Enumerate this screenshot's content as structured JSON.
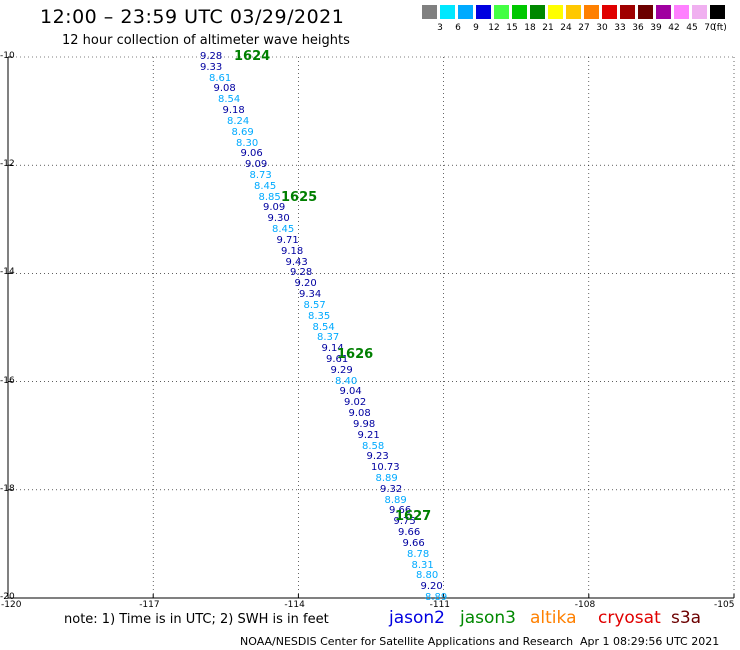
{
  "title": "12:00 – 23:59 UTC 03/29/2021",
  "subtitle": "12 hour collection of altimeter wave heights",
  "colorbar": {
    "colors": [
      "#808080",
      "#00e8ff",
      "#00aaff",
      "#0000e0",
      "#44ff44",
      "#00c800",
      "#008800",
      "#ffff00",
      "#ffc800",
      "#ff8000",
      "#e00000",
      "#a00000",
      "#6c0000",
      "#a000a0",
      "#ff80ff",
      "#f0b0f0",
      "#000000"
    ],
    "labels": [
      "3",
      "6",
      "9",
      "12",
      "15",
      "18",
      "21",
      "24",
      "27",
      "30",
      "33",
      "36",
      "39",
      "42",
      "45",
      "70",
      "(ft)"
    ]
  },
  "chart_data": {
    "type": "scatter",
    "x_axis": {
      "ticks": [
        "-120",
        "-117",
        "-114",
        "-111",
        "-108",
        "-105"
      ]
    },
    "y_axis": {
      "ticks": [
        "-10",
        "-12",
        "-14",
        "-16",
        "-18",
        "-20"
      ]
    },
    "passes": [
      {
        "label": "1624",
        "x": -114.6,
        "y": -10.0
      },
      {
        "label": "1625",
        "x": -113.9,
        "y": -12.6
      },
      {
        "label": "1626",
        "x": -112.8,
        "y": -15.5
      },
      {
        "label": "1627",
        "x": -111.6,
        "y": -18.5
      }
    ],
    "points": [
      {
        "v": "9.28",
        "x": -116.0,
        "y": -10.0,
        "c": "#0000a0"
      },
      {
        "v": "9.33",
        "x": -116.0,
        "y": -10.2,
        "c": "#0000a0"
      },
      {
        "v": "8.61",
        "x": -115.9,
        "y": -10.4,
        "c": "#00aaff"
      },
      {
        "v": "9.08",
        "x": -115.85,
        "y": -10.6,
        "c": "#0000a0"
      },
      {
        "v": "8.54",
        "x": -115.8,
        "y": -10.8,
        "c": "#00aaff"
      },
      {
        "v": "9.18",
        "x": -115.75,
        "y": -11.0,
        "c": "#0000a0"
      },
      {
        "v": "8.24",
        "x": -115.7,
        "y": -11.2,
        "c": "#00aaff"
      },
      {
        "v": "8.69",
        "x": -115.65,
        "y": -11.4,
        "c": "#00aaff"
      },
      {
        "v": "8.30",
        "x": -115.6,
        "y": -11.6,
        "c": "#00aaff"
      },
      {
        "v": "9.06",
        "x": -115.55,
        "y": -11.8,
        "c": "#0000a0"
      },
      {
        "v": "9.09",
        "x": -115.5,
        "y": -12.0,
        "c": "#0000a0"
      },
      {
        "v": "8.73",
        "x": -115.45,
        "y": -12.2,
        "c": "#00aaff"
      },
      {
        "v": "8.45",
        "x": -115.4,
        "y": -12.4,
        "c": "#00aaff"
      },
      {
        "v": "8.85",
        "x": -115.35,
        "y": -12.6,
        "c": "#00aaff"
      },
      {
        "v": "9.09",
        "x": -115.3,
        "y": -12.8,
        "c": "#0000a0"
      },
      {
        "v": "9.30",
        "x": -115.25,
        "y": -13.0,
        "c": "#0000a0"
      },
      {
        "v": "8.45",
        "x": -115.2,
        "y": -13.2,
        "c": "#00aaff"
      },
      {
        "v": "9.71",
        "x": -115.15,
        "y": -13.4,
        "c": "#0000a0"
      },
      {
        "v": "9.18",
        "x": -115.1,
        "y": -13.6,
        "c": "#0000a0"
      },
      {
        "v": "9.43",
        "x": -115.05,
        "y": -13.8,
        "c": "#0000a0"
      },
      {
        "v": "9.28",
        "x": -115.0,
        "y": -14.0,
        "c": "#0000a0"
      },
      {
        "v": "9.20",
        "x": -114.95,
        "y": -14.2,
        "c": "#0000a0"
      },
      {
        "v": "9.34",
        "x": -114.9,
        "y": -14.4,
        "c": "#0000a0"
      },
      {
        "v": "8.57",
        "x": -114.85,
        "y": -14.6,
        "c": "#00aaff"
      },
      {
        "v": "8.35",
        "x": -114.8,
        "y": -14.8,
        "c": "#00aaff"
      },
      {
        "v": "8.54",
        "x": -114.75,
        "y": -15.0,
        "c": "#00aaff"
      },
      {
        "v": "8.37",
        "x": -114.7,
        "y": -15.2,
        "c": "#00aaff"
      },
      {
        "v": "9.14",
        "x": -114.65,
        "y": -15.4,
        "c": "#0000a0"
      },
      {
        "v": "9.61",
        "x": -114.6,
        "y": -15.6,
        "c": "#0000a0"
      },
      {
        "v": "9.29",
        "x": -114.55,
        "y": -15.8,
        "c": "#0000a0"
      },
      {
        "v": "8.40",
        "x": -114.5,
        "y": -16.0,
        "c": "#00aaff"
      },
      {
        "v": "9.04",
        "x": -114.45,
        "y": -16.2,
        "c": "#0000a0"
      },
      {
        "v": "9.02",
        "x": -114.4,
        "y": -16.4,
        "c": "#0000a0"
      },
      {
        "v": "9.08",
        "x": -114.35,
        "y": -16.6,
        "c": "#0000a0"
      },
      {
        "v": "9.98",
        "x": -114.3,
        "y": -16.8,
        "c": "#0000a0"
      },
      {
        "v": "9.21",
        "x": -114.25,
        "y": -17.0,
        "c": "#0000a0"
      },
      {
        "v": "8.58",
        "x": -114.2,
        "y": -17.2,
        "c": "#00aaff"
      },
      {
        "v": "9.23",
        "x": -114.15,
        "y": -17.4,
        "c": "#0000a0"
      },
      {
        "v": "10.73",
        "x": -114.1,
        "y": -17.6,
        "c": "#0000a0"
      },
      {
        "v": "8.89",
        "x": -114.05,
        "y": -17.8,
        "c": "#00aaff"
      },
      {
        "v": "9.32",
        "x": -114.0,
        "y": -18.0,
        "c": "#0000a0"
      },
      {
        "v": "8.89",
        "x": -113.95,
        "y": -18.2,
        "c": "#00aaff"
      },
      {
        "v": "9.66",
        "x": -113.9,
        "y": -18.4,
        "c": "#0000a0"
      },
      {
        "v": "9.75",
        "x": -113.85,
        "y": -18.6,
        "c": "#0000a0"
      },
      {
        "v": "9.66",
        "x": -113.8,
        "y": -18.8,
        "c": "#0000a0"
      },
      {
        "v": "9.66",
        "x": -113.75,
        "y": -19.0,
        "c": "#0000a0"
      },
      {
        "v": "8.78",
        "x": -113.7,
        "y": -19.2,
        "c": "#00aaff"
      },
      {
        "v": "8.31",
        "x": -113.65,
        "y": -19.4,
        "c": "#00aaff"
      },
      {
        "v": "8.80",
        "x": -113.6,
        "y": -19.6,
        "c": "#00aaff"
      },
      {
        "v": "9.20",
        "x": -113.55,
        "y": -19.8,
        "c": "#0000a0"
      },
      {
        "v": "8.89",
        "x": -113.5,
        "y": -20.0,
        "c": "#00aaff"
      }
    ]
  },
  "note": "note: 1) Time is in UTC; 2) SWH is in feet",
  "satellites": [
    {
      "name": "jason2",
      "color": "#0000e0"
    },
    {
      "name": "jason3",
      "color": "#008800"
    },
    {
      "name": "altika",
      "color": "#ff8000"
    },
    {
      "name": "cryosat",
      "color": "#e00000"
    },
    {
      "name": "s3a",
      "color": "#6c0000"
    }
  ],
  "footer": "NOAA/NESDIS Center for Satellite Applications and Research",
  "timestamp": "Apr  1 08:29:56 UTC 2021"
}
